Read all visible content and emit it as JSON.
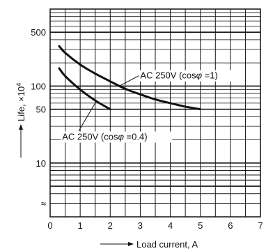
{
  "chart_data": {
    "type": "line",
    "xlabel": "Load current, A",
    "ylabel": "Life, ×10",
    "ylabel_sup": "4",
    "xlim": [
      0,
      7
    ],
    "ylim": [
      2,
      1000
    ],
    "yscale": "log",
    "xticks": [
      "0",
      "1",
      "2",
      "3",
      "4",
      "5",
      "6",
      "7"
    ],
    "yticks": [
      {
        "value": 10,
        "label": "10"
      },
      {
        "value": 50,
        "label": "50"
      },
      {
        "value": 100,
        "label": "100"
      },
      {
        "value": 500,
        "label": "500"
      }
    ],
    "grid": true,
    "axis_break_symbol": "≈",
    "series": [
      {
        "name": "AC 250V (cosφ =1)",
        "x": [
          0.3,
          0.5,
          1.0,
          1.5,
          2.0,
          2.5,
          3.0,
          3.5,
          4.0,
          4.5,
          5.0
        ],
        "y": [
          330,
          270,
          190,
          145,
          115,
          92,
          78,
          67,
          60,
          54,
          50
        ]
      },
      {
        "name": "AC 250V (cosφ =0.4)",
        "x": [
          0.3,
          0.5,
          1.0,
          1.5,
          2.0
        ],
        "y": [
          170,
          135,
          90,
          65,
          50
        ]
      }
    ],
    "annotations": [
      {
        "series": 0,
        "text_pre": "AC 250V (cos",
        "symbol": "φ",
        "text_post": " =1)"
      },
      {
        "series": 1,
        "text_pre": "AC 250V (cos",
        "symbol": "φ",
        "text_post": " =0.4)"
      }
    ]
  }
}
